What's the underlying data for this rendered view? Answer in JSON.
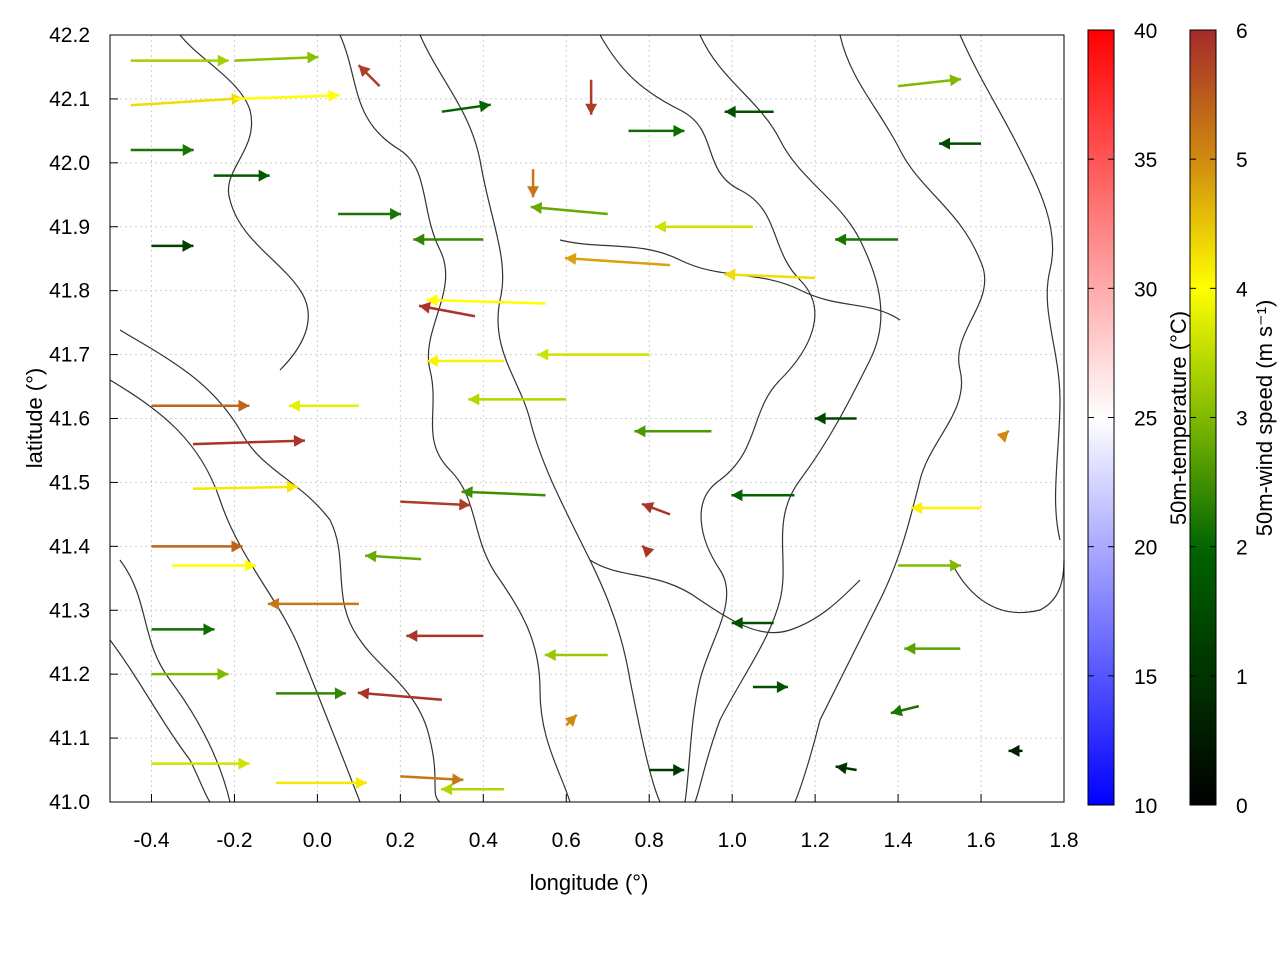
{
  "chart_data": {
    "type": "quiver",
    "xlabel": "longitude (°)",
    "ylabel": "latitude (°)",
    "xlim": [
      -0.5,
      1.8
    ],
    "ylim": [
      41.0,
      42.2
    ],
    "xticks": [
      "-0.4",
      "-0.2",
      "0.0",
      "0.2",
      "0.4",
      "0.6",
      "0.8",
      "1.0",
      "1.2",
      "1.4",
      "1.6",
      "1.8"
    ],
    "xtick_values": [
      -0.4,
      -0.2,
      0.0,
      0.2,
      0.4,
      0.6,
      0.8,
      1.0,
      1.2,
      1.4,
      1.6,
      1.8
    ],
    "yticks": [
      "41.0",
      "41.1",
      "41.2",
      "41.3",
      "41.4",
      "41.5",
      "41.6",
      "41.7",
      "41.8",
      "41.9",
      "42.0",
      "42.1",
      "42.2"
    ],
    "ytick_values": [
      41.0,
      41.1,
      41.2,
      41.3,
      41.4,
      41.5,
      41.6,
      41.7,
      41.8,
      41.9,
      42.0,
      42.1,
      42.2
    ],
    "grid": true,
    "colorbars": [
      {
        "label": "50m-temperature (°C)",
        "range": [
          10,
          40
        ],
        "ticks": [
          "10",
          "15",
          "20",
          "25",
          "30",
          "35",
          "40"
        ],
        "tick_values": [
          10,
          15,
          20,
          25,
          30,
          35,
          40
        ],
        "colors": [
          "#0000ff",
          "#ffffff",
          "#ff0000"
        ]
      },
      {
        "label": "50m-wind speed (m s⁻¹)",
        "range": [
          0,
          6
        ],
        "ticks": [
          "0",
          "1",
          "2",
          "3",
          "4",
          "5",
          "6"
        ],
        "tick_values": [
          0,
          1,
          2,
          3,
          4,
          5,
          6
        ],
        "colors": [
          "#000000",
          "#006400",
          "#7fba00",
          "#ffff00",
          "#d08a10",
          "#a52a2a"
        ]
      }
    ],
    "vectors": [
      {
        "x": -0.45,
        "y": 42.16,
        "u": 1.4,
        "v": 0.0,
        "speed": 3.3
      },
      {
        "x": -0.2,
        "y": 42.16,
        "u": 1.2,
        "v": 0.05,
        "speed": 3.1
      },
      {
        "x": -0.45,
        "y": 42.09,
        "u": 1.6,
        "v": 0.1,
        "speed": 4.3
      },
      {
        "x": -0.2,
        "y": 42.1,
        "u": 1.5,
        "v": 0.05,
        "speed": 4.0
      },
      {
        "x": 0.15,
        "y": 42.12,
        "u": -0.3,
        "v": 0.3,
        "speed": 5.8
      },
      {
        "x": -0.45,
        "y": 42.02,
        "u": 0.9,
        "v": 0.0,
        "speed": 2.2
      },
      {
        "x": -0.25,
        "y": 41.98,
        "u": 0.8,
        "v": 0.0,
        "speed": 1.8
      },
      {
        "x": 0.3,
        "y": 42.08,
        "u": 0.7,
        "v": 0.1,
        "speed": 2.0
      },
      {
        "x": 0.66,
        "y": 42.13,
        "u": 0.0,
        "v": -0.5,
        "speed": 5.8
      },
      {
        "x": 0.52,
        "y": 41.99,
        "u": 0.0,
        "v": -0.4,
        "speed": 5.2
      },
      {
        "x": 0.75,
        "y": 42.05,
        "u": 0.8,
        "v": 0.0,
        "speed": 2.1
      },
      {
        "x": 1.1,
        "y": 42.08,
        "u": -0.7,
        "v": 0.0,
        "speed": 1.6
      },
      {
        "x": 1.4,
        "y": 42.12,
        "u": 0.9,
        "v": 0.1,
        "speed": 3.0
      },
      {
        "x": 1.6,
        "y": 42.03,
        "u": -0.6,
        "v": 0.0,
        "speed": 1.5
      },
      {
        "x": -0.4,
        "y": 41.87,
        "u": 0.6,
        "v": 0.0,
        "speed": 1.3
      },
      {
        "x": 0.05,
        "y": 41.92,
        "u": 0.9,
        "v": 0.0,
        "speed": 2.2
      },
      {
        "x": 0.4,
        "y": 41.88,
        "u": -1.0,
        "v": 0.0,
        "speed": 2.4
      },
      {
        "x": 0.7,
        "y": 41.92,
        "u": -1.1,
        "v": 0.1,
        "speed": 2.8
      },
      {
        "x": 1.05,
        "y": 41.9,
        "u": -1.4,
        "v": 0.0,
        "speed": 3.6
      },
      {
        "x": 1.4,
        "y": 41.88,
        "u": -0.9,
        "v": 0.0,
        "speed": 2.2
      },
      {
        "x": 0.55,
        "y": 41.78,
        "u": -1.7,
        "v": 0.05,
        "speed": 4.0
      },
      {
        "x": 0.85,
        "y": 41.84,
        "u": -1.5,
        "v": 0.1,
        "speed": 4.8
      },
      {
        "x": 1.2,
        "y": 41.82,
        "u": -1.3,
        "v": 0.05,
        "speed": 4.3
      },
      {
        "x": 0.38,
        "y": 41.76,
        "u": -0.8,
        "v": 0.15,
        "speed": 5.9
      },
      {
        "x": 0.45,
        "y": 41.69,
        "u": -1.1,
        "v": 0.0,
        "speed": 4.1
      },
      {
        "x": 0.8,
        "y": 41.7,
        "u": -1.6,
        "v": 0.0,
        "speed": 3.6
      },
      {
        "x": -0.4,
        "y": 41.62,
        "u": 1.4,
        "v": 0.0,
        "speed": 5.4
      },
      {
        "x": -0.3,
        "y": 41.56,
        "u": 1.6,
        "v": 0.05,
        "speed": 5.9
      },
      {
        "x": -0.3,
        "y": 41.49,
        "u": 1.5,
        "v": 0.03,
        "speed": 4.2
      },
      {
        "x": 0.1,
        "y": 41.62,
        "u": -1.0,
        "v": 0.0,
        "speed": 3.8
      },
      {
        "x": 0.6,
        "y": 41.63,
        "u": -1.4,
        "v": 0.0,
        "speed": 3.4
      },
      {
        "x": 0.95,
        "y": 41.58,
        "u": -1.1,
        "v": 0.0,
        "speed": 2.6
      },
      {
        "x": 1.3,
        "y": 41.6,
        "u": -0.6,
        "v": 0.0,
        "speed": 1.4
      },
      {
        "x": 1.65,
        "y": 41.57,
        "u": 0.1,
        "v": 0.1,
        "speed": 5.0
      },
      {
        "x": 0.2,
        "y": 41.47,
        "u": 1.0,
        "v": -0.05,
        "speed": 5.8
      },
      {
        "x": 0.55,
        "y": 41.48,
        "u": -1.2,
        "v": 0.05,
        "speed": 2.5
      },
      {
        "x": 0.85,
        "y": 41.45,
        "u": -0.4,
        "v": 0.15,
        "speed": 5.9
      },
      {
        "x": 1.15,
        "y": 41.48,
        "u": -0.9,
        "v": 0.0,
        "speed": 2.0
      },
      {
        "x": 1.6,
        "y": 41.46,
        "u": -1.0,
        "v": 0.0,
        "speed": 4.1
      },
      {
        "x": -0.4,
        "y": 41.4,
        "u": 1.3,
        "v": 0.0,
        "speed": 5.4
      },
      {
        "x": -0.35,
        "y": 41.37,
        "u": 1.2,
        "v": 0.0,
        "speed": 4.0
      },
      {
        "x": 0.25,
        "y": 41.38,
        "u": -0.8,
        "v": 0.05,
        "speed": 2.8
      },
      {
        "x": 0.8,
        "y": 41.39,
        "u": -0.1,
        "v": 0.1,
        "speed": 5.9
      },
      {
        "x": 1.4,
        "y": 41.37,
        "u": 0.9,
        "v": 0.0,
        "speed": 3.0
      },
      {
        "x": -0.4,
        "y": 41.27,
        "u": 0.9,
        "v": 0.0,
        "speed": 2.1
      },
      {
        "x": 0.1,
        "y": 41.31,
        "u": -1.3,
        "v": 0.0,
        "speed": 5.2
      },
      {
        "x": 0.4,
        "y": 41.26,
        "u": -1.1,
        "v": 0.0,
        "speed": 5.9
      },
      {
        "x": 0.7,
        "y": 41.23,
        "u": -0.9,
        "v": 0.0,
        "speed": 3.2
      },
      {
        "x": 1.1,
        "y": 41.28,
        "u": -0.6,
        "v": 0.0,
        "speed": 1.6
      },
      {
        "x": 1.55,
        "y": 41.24,
        "u": -0.8,
        "v": 0.0,
        "speed": 2.7
      },
      {
        "x": -0.4,
        "y": 41.2,
        "u": 1.1,
        "v": 0.0,
        "speed": 3.0
      },
      {
        "x": -0.1,
        "y": 41.17,
        "u": 1.0,
        "v": 0.0,
        "speed": 2.4
      },
      {
        "x": 0.3,
        "y": 41.16,
        "u": -1.2,
        "v": 0.1,
        "speed": 5.9
      },
      {
        "x": 0.6,
        "y": 41.12,
        "u": 0.15,
        "v": 0.15,
        "speed": 5.0
      },
      {
        "x": 1.05,
        "y": 41.18,
        "u": 0.5,
        "v": 0.0,
        "speed": 1.6
      },
      {
        "x": 1.45,
        "y": 41.15,
        "u": -0.4,
        "v": -0.1,
        "speed": 2.2
      },
      {
        "x": -0.4,
        "y": 41.06,
        "u": 1.4,
        "v": 0.0,
        "speed": 3.6
      },
      {
        "x": -0.1,
        "y": 41.03,
        "u": 1.3,
        "v": 0.0,
        "speed": 4.2
      },
      {
        "x": 0.2,
        "y": 41.04,
        "u": 0.9,
        "v": -0.05,
        "speed": 5.2
      },
      {
        "x": 0.45,
        "y": 41.02,
        "u": -0.9,
        "v": 0.0,
        "speed": 3.4
      },
      {
        "x": 0.8,
        "y": 41.05,
        "u": 0.5,
        "v": 0.0,
        "speed": 1.1
      },
      {
        "x": 1.3,
        "y": 41.05,
        "u": -0.3,
        "v": 0.05,
        "speed": 1.0
      },
      {
        "x": 1.7,
        "y": 41.08,
        "u": -0.2,
        "v": 0.0,
        "speed": 0.6
      }
    ]
  }
}
